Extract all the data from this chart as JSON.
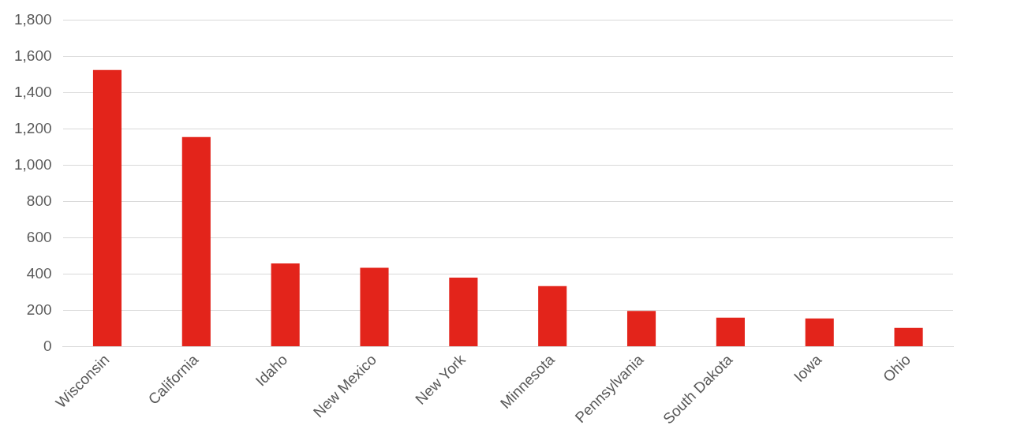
{
  "chart_data": {
    "type": "bar",
    "categories": [
      "Wisconsin",
      "California",
      "Idaho",
      "New Mexico",
      "New York",
      "Minnesota",
      "Pennsylvania",
      "South Dakota",
      "Iowa",
      "Ohio"
    ],
    "values": [
      1525,
      1155,
      458,
      435,
      380,
      333,
      197,
      160,
      155,
      103
    ],
    "color": "#e3241b",
    "ylim": [
      0,
      1800
    ],
    "yticks": [
      {
        "value": 0,
        "label": "0"
      },
      {
        "value": 200,
        "label": "200"
      },
      {
        "value": 400,
        "label": "400"
      },
      {
        "value": 600,
        "label": "600"
      },
      {
        "value": 800,
        "label": "800"
      },
      {
        "value": 1000,
        "label": "1,000"
      },
      {
        "value": 1200,
        "label": "1,200"
      },
      {
        "value": 1400,
        "label": "1,400"
      },
      {
        "value": 1600,
        "label": "1,600"
      },
      {
        "value": 1800,
        "label": "1,800"
      }
    ],
    "grid": "y",
    "legend": false
  }
}
